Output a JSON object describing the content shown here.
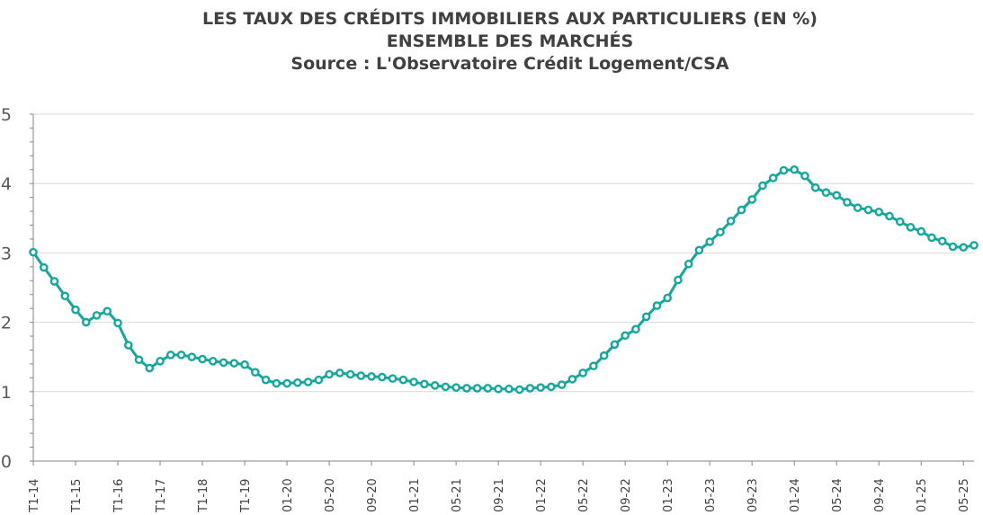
{
  "chart_data": {
    "type": "line",
    "title": [
      "LES TAUX DES CRÉDITS IMMOBILIERS AUX PARTICULIERS (EN %)",
      "ENSEMBLE DES MARCHÉS",
      "Source : L'Observatoire Crédit Logement/CSA"
    ],
    "xlabel": "",
    "ylabel": "",
    "ylim": [
      0,
      5
    ],
    "yticks": [
      "0",
      "1",
      "2",
      "3",
      "4",
      "5"
    ],
    "grid": true,
    "legend": "none",
    "color": "#12a89d",
    "x_labels": [
      "T1-14",
      "T1-15",
      "T1-16",
      "T1-17",
      "T1-18",
      "T1-19",
      "01-20",
      "05-20",
      "09-20",
      "01-21",
      "05-21",
      "09-21",
      "01-22",
      "05-22",
      "09-22",
      "01-23",
      "05-23",
      "09-23",
      "01-24",
      "05-24",
      "09-24",
      "01-25",
      "05-25"
    ],
    "x_label_index": [
      0,
      4,
      8,
      12,
      16,
      20,
      24,
      28,
      32,
      36,
      40,
      44,
      48,
      52,
      56,
      60,
      64,
      68,
      72,
      76,
      80,
      84,
      88
    ],
    "values": [
      3.01,
      2.79,
      2.59,
      2.38,
      2.18,
      2.0,
      2.1,
      2.16,
      1.99,
      1.67,
      1.46,
      1.34,
      1.44,
      1.53,
      1.53,
      1.5,
      1.47,
      1.44,
      1.42,
      1.41,
      1.39,
      1.28,
      1.17,
      1.12,
      1.12,
      1.13,
      1.14,
      1.17,
      1.25,
      1.27,
      1.25,
      1.23,
      1.22,
      1.21,
      1.19,
      1.17,
      1.14,
      1.11,
      1.09,
      1.07,
      1.06,
      1.05,
      1.05,
      1.05,
      1.04,
      1.04,
      1.03,
      1.05,
      1.06,
      1.07,
      1.1,
      1.18,
      1.27,
      1.37,
      1.52,
      1.68,
      1.81,
      1.9,
      2.08,
      2.24,
      2.35,
      2.61,
      2.84,
      3.04,
      3.16,
      3.3,
      3.46,
      3.62,
      3.77,
      3.97,
      4.08,
      4.19,
      4.2,
      4.11,
      3.94,
      3.87,
      3.83,
      3.73,
      3.65,
      3.62,
      3.59,
      3.53,
      3.45,
      3.37,
      3.31,
      3.22,
      3.17,
      3.09,
      3.08,
      3.11
    ]
  }
}
